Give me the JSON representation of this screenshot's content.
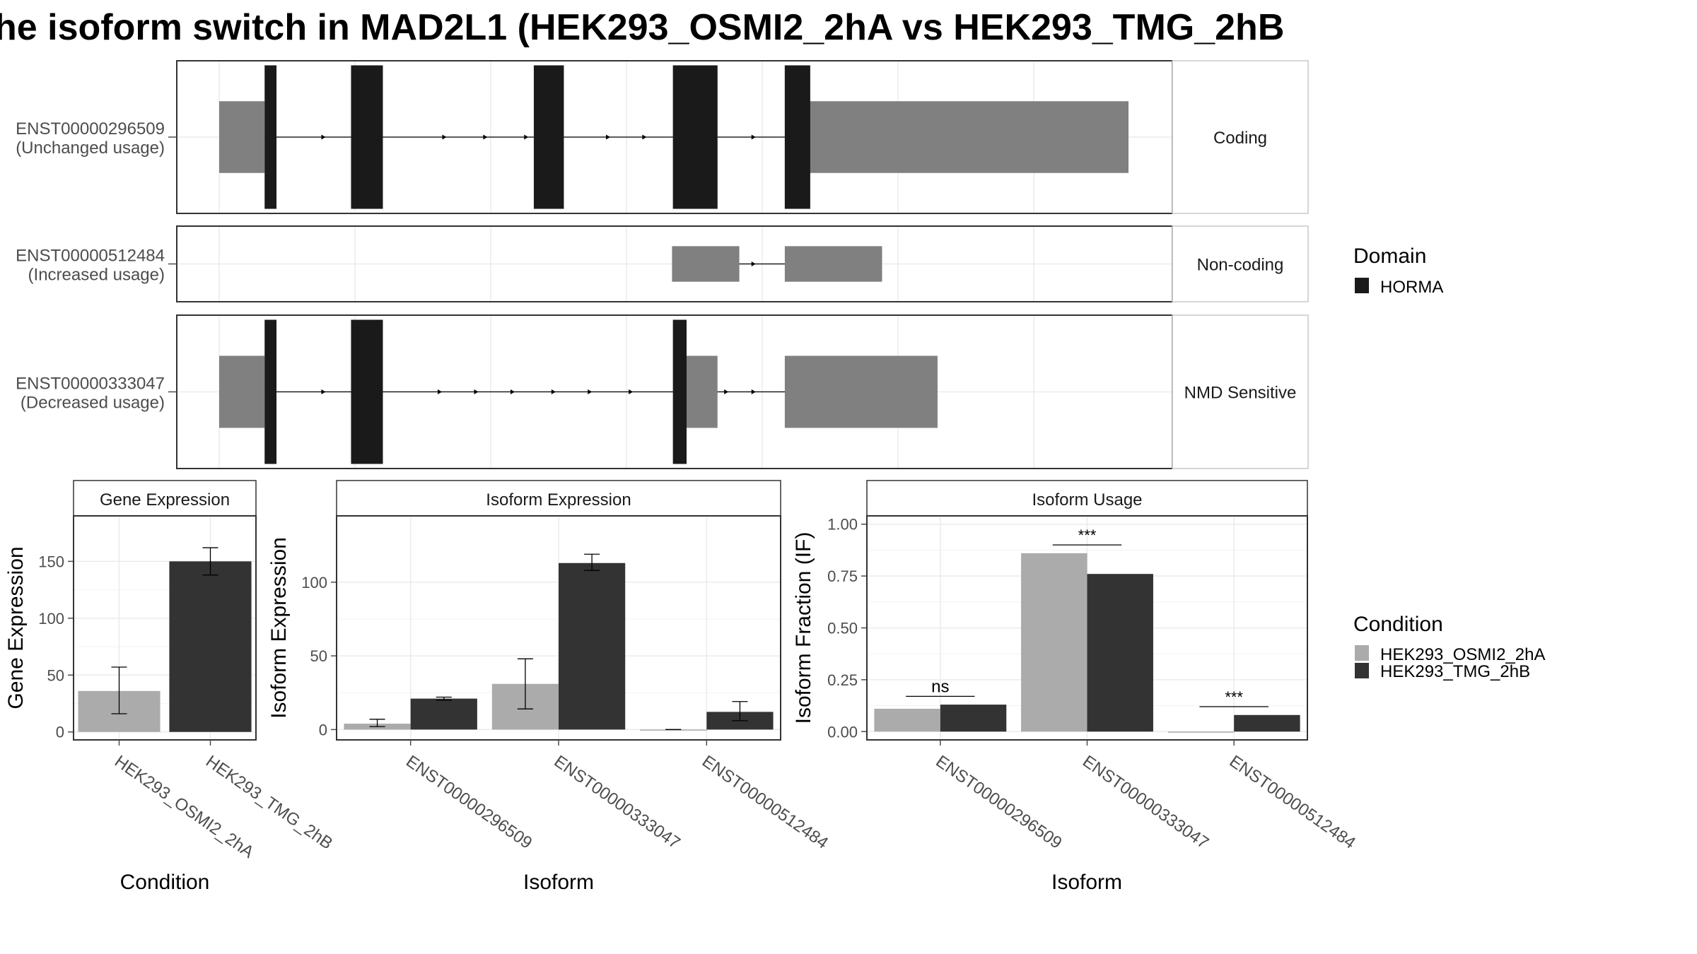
{
  "title": "he isoform switch in MAD2L1 (HEK293_OSMI2_2hA vs HEK293_TMG_2hB",
  "colors": {
    "domain": "#1a1a1a",
    "utr": "#808080",
    "cond_a": "#ababab",
    "cond_b": "#333333",
    "panel_border": "#333333",
    "grid": "#ebebeb",
    "axis_text": "#4d4d4d"
  },
  "legend_domain": {
    "title": "Domain",
    "items": [
      "HORMA"
    ]
  },
  "legend_condition": {
    "title": "Condition",
    "items": [
      "HEK293_OSMI2_2hA",
      "HEK293_TMG_2hB"
    ]
  },
  "chart_data": [
    {
      "type": "gene-structure",
      "xlim": [
        0,
        1000
      ],
      "rows": [
        {
          "label_line1": "ENST00000296509",
          "label_line2": "(Unchanged usage)",
          "category": "Coding",
          "utr_exons": [
            [
              0,
              35
            ],
            [
              35,
              50
            ],
            [
              637,
              1000
            ]
          ],
          "cds_exons": [
            [
              50,
              63
            ],
            [
              145,
              180
            ],
            [
              346,
              379
            ],
            [
              499,
              548
            ],
            [
              622,
              637
            ]
          ],
          "domain_segments": [
            [
              50,
              63
            ],
            [
              145,
              180
            ],
            [
              346,
              379
            ],
            [
              499,
              548
            ],
            [
              622,
              650
            ]
          ],
          "arrows": [
            117,
            250,
            295,
            340,
            430,
            470,
            590
          ]
        },
        {
          "label_line1": "ENST00000512484",
          "label_line2": "(Increased usage)",
          "category": "Non-coding",
          "utr_exons": [
            [
              498,
              572
            ],
            [
              622,
              729
            ]
          ],
          "cds_exons": [],
          "domain_segments": [],
          "arrows": [
            560,
            590
          ]
        },
        {
          "label_line1": "ENST00000333047",
          "label_line2": "(Decreased usage)",
          "category": "NMD Sensitive",
          "utr_exons": [
            [
              0,
              35
            ],
            [
              35,
              50
            ],
            [
              514,
              548
            ],
            [
              622,
              790
            ]
          ],
          "cds_exons": [
            [
              50,
              63
            ],
            [
              145,
              180
            ],
            [
              499,
              514
            ]
          ],
          "domain_segments": [
            [
              50,
              63
            ],
            [
              145,
              180
            ],
            [
              499,
              514
            ]
          ],
          "arrows": [
            117,
            245,
            285,
            325,
            370,
            410,
            455,
            560,
            590
          ]
        }
      ]
    },
    {
      "type": "bar",
      "title": "Gene Expression",
      "xlabel": "Condition",
      "ylabel": "Gene Expression",
      "ylim": [
        -7,
        190
      ],
      "yticks": [
        0,
        50,
        100,
        150
      ],
      "categories": [
        "HEK293_OSMI2_2hA",
        "HEK293_TMG_2hB"
      ],
      "values": [
        36,
        150
      ],
      "errors": [
        [
          16,
          57
        ],
        [
          138,
          162
        ]
      ]
    },
    {
      "type": "bar",
      "title": "Isoform Expression",
      "xlabel": "Isoform",
      "ylabel": "Isoform Expression",
      "ylim": [
        -7,
        145
      ],
      "yticks": [
        0,
        50,
        100
      ],
      "categories": [
        "ENST00000296509",
        "ENST00000333047",
        "ENST00000512484"
      ],
      "series": [
        {
          "name": "HEK293_OSMI2_2hA",
          "values": [
            4,
            31,
            0
          ],
          "errors": [
            [
              2,
              7
            ],
            [
              14,
              48
            ],
            [
              0,
              0
            ]
          ]
        },
        {
          "name": "HEK293_TMG_2hB",
          "values": [
            21,
            113,
            12
          ],
          "errors": [
            [
              20,
              22
            ],
            [
              108,
              119
            ],
            [
              6,
              19
            ]
          ]
        }
      ]
    },
    {
      "type": "bar",
      "title": "Isoform Usage",
      "xlabel": "Isoform",
      "ylabel": "Isoform Fraction (IF)",
      "ylim": [
        -0.04,
        1.04
      ],
      "yticks": [
        "0.00",
        "0.25",
        "0.50",
        "0.75",
        "1.00"
      ],
      "categories": [
        "ENST00000296509",
        "ENST00000333047",
        "ENST00000512484"
      ],
      "series": [
        {
          "name": "HEK293_OSMI2_2hA",
          "values": [
            0.11,
            0.86,
            0.0
          ]
        },
        {
          "name": "HEK293_TMG_2hB",
          "values": [
            0.13,
            0.76,
            0.08
          ]
        }
      ],
      "significance": [
        "ns",
        "***",
        "***"
      ]
    }
  ]
}
